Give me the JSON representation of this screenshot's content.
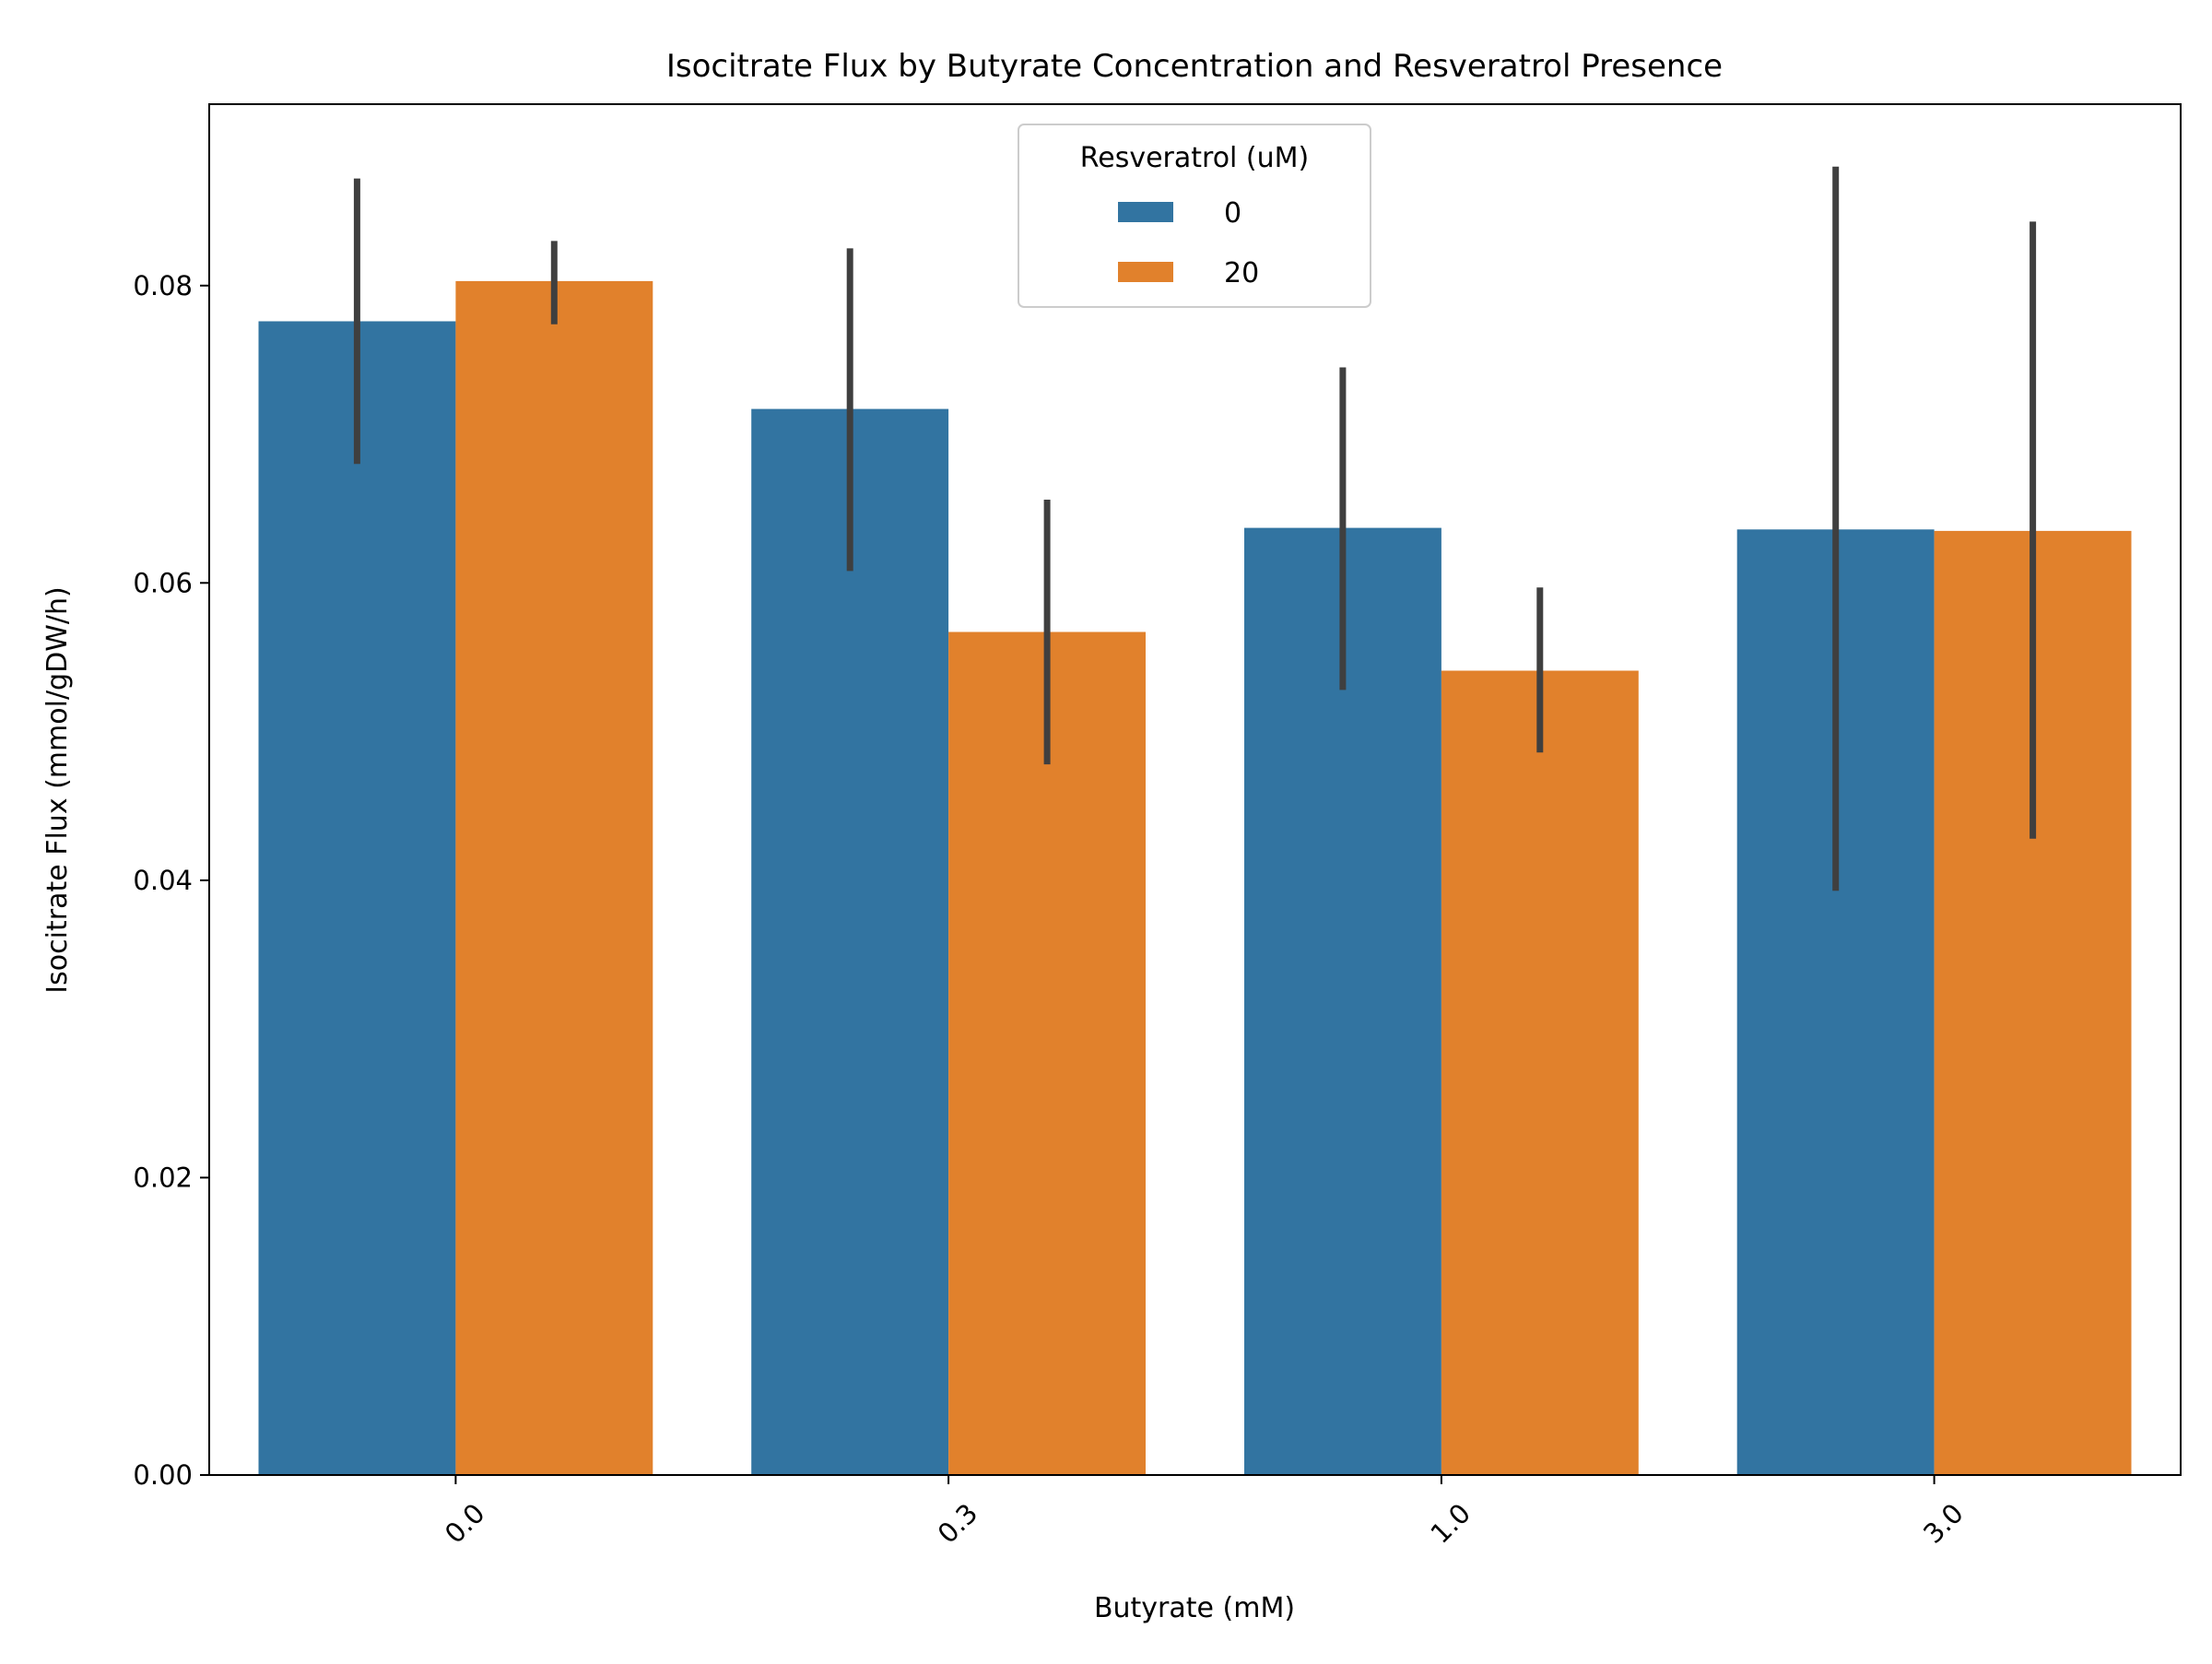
{
  "chart_data": {
    "type": "bar",
    "title": "Isocitrate Flux by Butyrate Concentration and Resveratrol Presence",
    "xlabel": "Butyrate (mM)",
    "ylabel": "Isocitrate Flux (mmol/gDW/h)",
    "categories": [
      "0.0",
      "0.3",
      "1.0",
      "3.0"
    ],
    "ylim": [
      0,
      0.0922
    ],
    "yticks": [
      0.0,
      0.02,
      0.04,
      0.06,
      0.08
    ],
    "ytick_labels": [
      "0.00",
      "0.02",
      "0.04",
      "0.06",
      "0.08"
    ],
    "grid": false,
    "legend": {
      "title": "Resveratrol (uM)",
      "placement": "top-center"
    },
    "series": [
      {
        "name": "0",
        "color": "#3274a1",
        "values": [
          0.0776,
          0.0717,
          0.0637,
          0.0636
        ],
        "ci_low": [
          0.068,
          0.0608,
          0.0528,
          0.0393
        ],
        "ci_high": [
          0.0872,
          0.0825,
          0.0745,
          0.088
        ]
      },
      {
        "name": "20",
        "color": "#e1812c",
        "values": [
          0.0803,
          0.0567,
          0.0541,
          0.0635
        ],
        "ci_low": [
          0.0774,
          0.0478,
          0.0486,
          0.0428
        ],
        "ci_high": [
          0.083,
          0.0656,
          0.0597,
          0.0843
        ]
      }
    ],
    "errorbar_color": "#3f3f3f"
  }
}
